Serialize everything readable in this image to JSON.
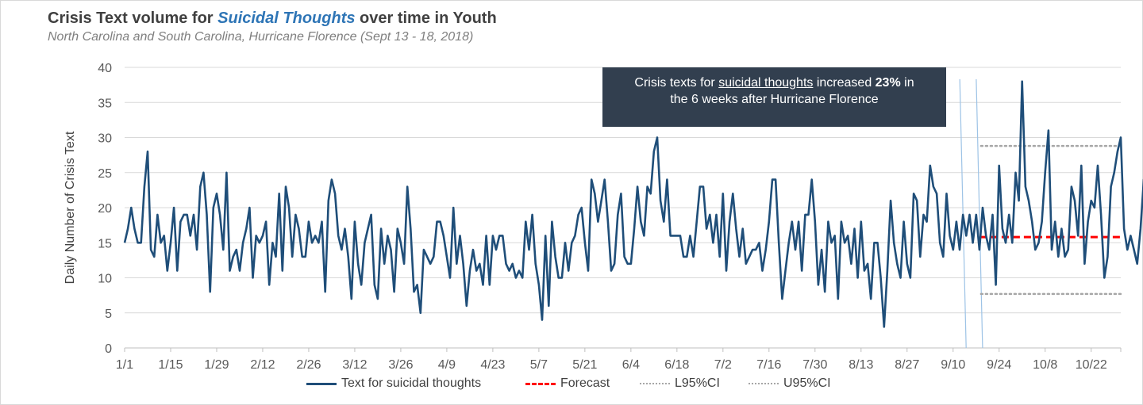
{
  "title": {
    "prefix": "Crisis Text volume for ",
    "highlight": "Suicidal Thoughts",
    "suffix": " over time in Youth"
  },
  "subtitle": "North Carolina and South Carolina, Hurricane Florence (Sept 13 - 18, 2018)",
  "annotation": {
    "prefix": "Crisis texts for ",
    "underlined": "suicidal thoughts",
    "middle": " increased ",
    "bold": "23%",
    "after": " in",
    "line2": "the 6 weeks after Hurricane Florence"
  },
  "colors": {
    "series": "#1f4e79",
    "forecast": "#ff0000",
    "ci": "#a6a6a6",
    "event_line": "#9dc3e6",
    "grid": "#d9d9d9",
    "annotation_bg": "#323f4f"
  },
  "chart_data": {
    "type": "line",
    "title": "Crisis Text volume for Suicidal Thoughts over time in Youth",
    "subtitle": "North Carolina and South Carolina, Hurricane Florence (Sept 13 - 18, 2018)",
    "xlabel": "",
    "ylabel": "Daily Number of Crisis Text",
    "ylim": [
      0,
      40
    ],
    "yticks": [
      0,
      5,
      10,
      15,
      20,
      25,
      30,
      35,
      40
    ],
    "x_start": "2018-01-01",
    "x_end": "2018-10-31",
    "xtick_labels": [
      "1/1",
      "1/15",
      "1/29",
      "2/12",
      "2/26",
      "3/12",
      "3/26",
      "4/9",
      "4/23",
      "5/7",
      "5/21",
      "6/4",
      "6/18",
      "7/2",
      "7/16",
      "7/30",
      "8/13",
      "8/27",
      "9/10",
      "9/24",
      "10/8",
      "10/22"
    ],
    "grid": true,
    "legend_position": "bottom",
    "event_lines": [
      "2018-09-13",
      "2018-09-18"
    ],
    "series": [
      {
        "name": "Text for suicidal thoughts",
        "style": "solid",
        "x_start": "2018-01-01",
        "values": [
          15,
          17,
          20,
          17,
          15,
          15,
          23,
          28,
          14,
          13,
          19,
          15,
          16,
          11,
          15,
          20,
          11,
          18,
          19,
          19,
          16,
          19,
          14,
          23,
          25,
          19,
          8,
          20,
          22,
          19,
          14,
          25,
          11,
          13,
          14,
          11,
          15,
          17,
          20,
          10,
          16,
          15,
          16,
          18,
          9,
          15,
          13,
          22,
          11,
          23,
          20,
          13,
          19,
          17,
          13,
          13,
          18,
          15,
          16,
          15,
          18,
          8,
          21,
          24,
          22,
          16,
          14,
          17,
          13,
          7,
          18,
          12,
          9,
          15,
          17,
          19,
          9,
          7,
          17,
          12,
          16,
          14,
          8,
          17,
          15,
          12,
          23,
          17,
          8,
          9,
          5,
          14,
          13,
          12,
          13,
          18,
          18,
          16,
          13,
          10,
          20,
          12,
          16,
          12,
          6,
          11,
          14,
          11,
          12,
          9,
          16,
          9,
          16,
          14,
          16,
          16,
          12,
          11,
          12,
          10,
          11,
          10,
          18,
          14,
          19,
          12,
          9,
          4,
          16,
          6,
          18,
          13,
          10,
          10,
          15,
          11,
          15,
          16,
          19,
          20,
          15,
          11,
          24,
          22,
          18,
          21,
          24,
          18,
          11,
          12,
          19,
          22,
          13,
          12,
          12,
          17,
          23,
          18,
          16,
          23,
          22,
          28,
          30,
          21,
          18,
          24,
          16,
          16,
          16,
          16,
          13,
          13,
          16,
          13,
          18,
          23,
          23,
          17,
          19,
          15,
          19,
          13,
          22,
          11,
          18,
          22,
          17,
          13,
          17,
          12,
          13,
          14,
          14,
          15,
          11,
          14,
          18,
          24,
          24,
          15,
          7,
          11,
          15,
          18,
          14,
          18,
          11,
          19,
          19,
          24,
          18,
          9,
          14,
          8,
          18,
          15,
          16,
          7,
          18,
          15,
          16,
          12,
          17,
          10,
          18,
          11,
          12,
          7,
          15,
          15,
          10,
          3,
          11,
          21,
          15,
          12,
          10,
          18,
          12,
          10,
          22,
          21,
          13,
          19,
          18,
          26,
          23,
          22,
          15,
          13,
          22,
          16,
          14,
          18,
          14,
          19,
          16,
          19,
          15,
          19,
          14,
          20,
          16,
          14,
          19,
          9,
          26,
          17,
          15,
          19,
          15,
          25,
          21,
          38,
          23,
          21,
          18,
          14,
          15,
          18,
          25,
          31,
          14,
          18,
          13,
          17,
          13,
          14,
          23,
          21,
          16,
          26,
          12,
          18,
          21,
          20,
          26,
          19,
          10,
          13,
          23,
          25,
          28,
          30,
          17,
          14,
          16,
          14,
          12,
          17,
          24,
          18
        ]
      },
      {
        "name": "Forecast",
        "style": "dashed",
        "x_start": "2018-09-18",
        "x_end": "2018-10-31",
        "value": 15.8
      },
      {
        "name": "L95%CI",
        "style": "dotted",
        "x_start": "2018-09-18",
        "x_end": "2018-10-31",
        "value": 7.7
      },
      {
        "name": "U95%CI",
        "style": "dotted",
        "x_start": "2018-09-18",
        "x_end": "2018-10-31",
        "value": 28.8
      }
    ]
  }
}
